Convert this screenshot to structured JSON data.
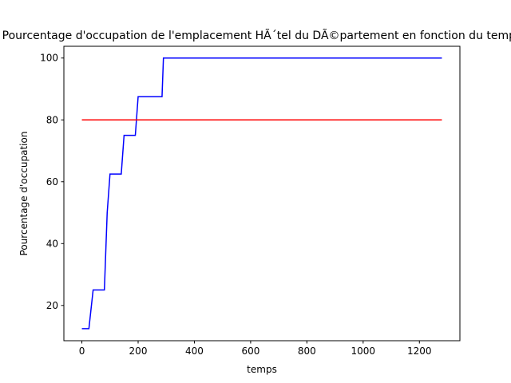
{
  "chart_data": {
    "type": "line",
    "title": "Pourcentage d'occupation de l'emplacement HÃ´tel du DÃ©partement en fonction du temps",
    "xlabel": "temps",
    "ylabel": "Pourcentage d'occupation",
    "xlim": [
      -64,
      1344
    ],
    "ylim": [
      8.6,
      103.8
    ],
    "xticks": [
      0,
      200,
      400,
      600,
      800,
      1000,
      1200
    ],
    "yticks": [
      20,
      40,
      60,
      80,
      100
    ],
    "grid": false,
    "series": [
      {
        "color": "#0000ff",
        "x": [
          0,
          25,
          40,
          80,
          90,
          100,
          140,
          150,
          190,
          200,
          285,
          290,
          1280
        ],
        "y": [
          12.5,
          12.5,
          25,
          25,
          50,
          62.5,
          62.5,
          75,
          75,
          87.5,
          87.5,
          100,
          100
        ]
      },
      {
        "color": "#ff0000",
        "x": [
          0,
          1280
        ],
        "y": [
          80,
          80
        ]
      }
    ]
  }
}
